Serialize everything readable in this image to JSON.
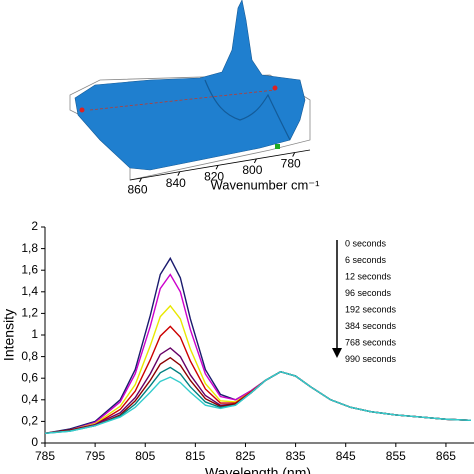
{
  "chart_data": [
    {
      "type": "surface",
      "xlabel": "Wavenumber cm⁻¹",
      "xlim": [
        866,
        772
      ],
      "xticks": [
        860,
        840,
        820,
        800,
        780
      ]
    },
    {
      "type": "line",
      "ylabel": "Intensity",
      "xlabel": "Wavelength (nm)",
      "x": [
        785,
        790,
        795,
        800,
        803,
        806,
        808,
        810,
        812,
        814,
        817,
        820,
        823,
        826,
        829,
        832,
        835,
        838,
        842,
        846,
        850,
        855,
        860,
        865,
        870
      ],
      "xlim": [
        785,
        870
      ],
      "xticks": [
        785,
        795,
        805,
        815,
        825,
        835,
        845,
        855,
        865
      ],
      "ylim": [
        0,
        2
      ],
      "yticks": [
        0,
        {
          "value": 0.2,
          "label": "0,2"
        },
        {
          "value": 0.4,
          "label": "0,4"
        },
        {
          "value": 0.6,
          "label": "0,6"
        },
        {
          "value": 0.8,
          "label": "0,8"
        },
        1,
        {
          "value": 1.2,
          "label": "1,2"
        },
        {
          "value": 1.4,
          "label": "1,4"
        },
        {
          "value": 1.6,
          "label": "1,6"
        },
        {
          "value": 1.8,
          "label": "1,8"
        },
        2
      ],
      "series": [
        {
          "name": "0 seconds",
          "color": "#1a1a6e",
          "values": [
            0.09,
            0.13,
            0.2,
            0.4,
            0.68,
            1.18,
            1.56,
            1.71,
            1.53,
            1.15,
            0.68,
            0.45,
            0.4,
            0.48,
            0.58,
            0.66,
            0.62,
            0.52,
            0.4,
            0.33,
            0.29,
            0.26,
            0.24,
            0.22,
            0.21
          ]
        },
        {
          "name": "6 seconds",
          "color": "#cc00cc",
          "values": [
            0.09,
            0.12,
            0.19,
            0.38,
            0.64,
            1.08,
            1.43,
            1.56,
            1.4,
            1.05,
            0.64,
            0.43,
            0.4,
            0.48,
            0.58,
            0.66,
            0.62,
            0.52,
            0.4,
            0.33,
            0.29,
            0.26,
            0.24,
            0.22,
            0.21
          ]
        },
        {
          "name": "12 seconds",
          "color": "#e8e800",
          "values": [
            0.09,
            0.12,
            0.18,
            0.34,
            0.54,
            0.9,
            1.17,
            1.27,
            1.15,
            0.87,
            0.55,
            0.39,
            0.38,
            0.47,
            0.58,
            0.66,
            0.62,
            0.52,
            0.4,
            0.33,
            0.29,
            0.26,
            0.24,
            0.22,
            0.21
          ]
        },
        {
          "name": "96 seconds",
          "color": "#cc0000",
          "values": [
            0.09,
            0.12,
            0.17,
            0.31,
            0.48,
            0.77,
            0.99,
            1.08,
            0.98,
            0.76,
            0.5,
            0.37,
            0.37,
            0.47,
            0.58,
            0.66,
            0.62,
            0.52,
            0.4,
            0.33,
            0.29,
            0.26,
            0.24,
            0.22,
            0.21
          ]
        },
        {
          "name": "192 seconds",
          "color": "#660066",
          "values": [
            0.09,
            0.12,
            0.17,
            0.28,
            0.42,
            0.64,
            0.82,
            0.88,
            0.8,
            0.63,
            0.44,
            0.35,
            0.36,
            0.46,
            0.58,
            0.66,
            0.62,
            0.52,
            0.4,
            0.33,
            0.29,
            0.26,
            0.24,
            0.22,
            0.21
          ]
        },
        {
          "name": "384 seconds",
          "color": "#8b0000",
          "values": [
            0.09,
            0.12,
            0.16,
            0.26,
            0.39,
            0.58,
            0.73,
            0.79,
            0.72,
            0.58,
            0.41,
            0.34,
            0.36,
            0.46,
            0.58,
            0.66,
            0.62,
            0.52,
            0.4,
            0.33,
            0.29,
            0.26,
            0.24,
            0.22,
            0.21
          ]
        },
        {
          "name": "768 seconds",
          "color": "#008080",
          "values": [
            0.09,
            0.11,
            0.16,
            0.25,
            0.36,
            0.53,
            0.65,
            0.7,
            0.64,
            0.52,
            0.38,
            0.33,
            0.35,
            0.46,
            0.58,
            0.66,
            0.62,
            0.52,
            0.4,
            0.33,
            0.29,
            0.26,
            0.24,
            0.22,
            0.21
          ]
        },
        {
          "name": "990 seconds",
          "color": "#33cccc",
          "values": [
            0.09,
            0.11,
            0.16,
            0.24,
            0.33,
            0.47,
            0.57,
            0.61,
            0.56,
            0.47,
            0.35,
            0.32,
            0.35,
            0.46,
            0.58,
            0.66,
            0.62,
            0.52,
            0.4,
            0.33,
            0.29,
            0.26,
            0.24,
            0.22,
            0.21
          ]
        }
      ]
    }
  ]
}
